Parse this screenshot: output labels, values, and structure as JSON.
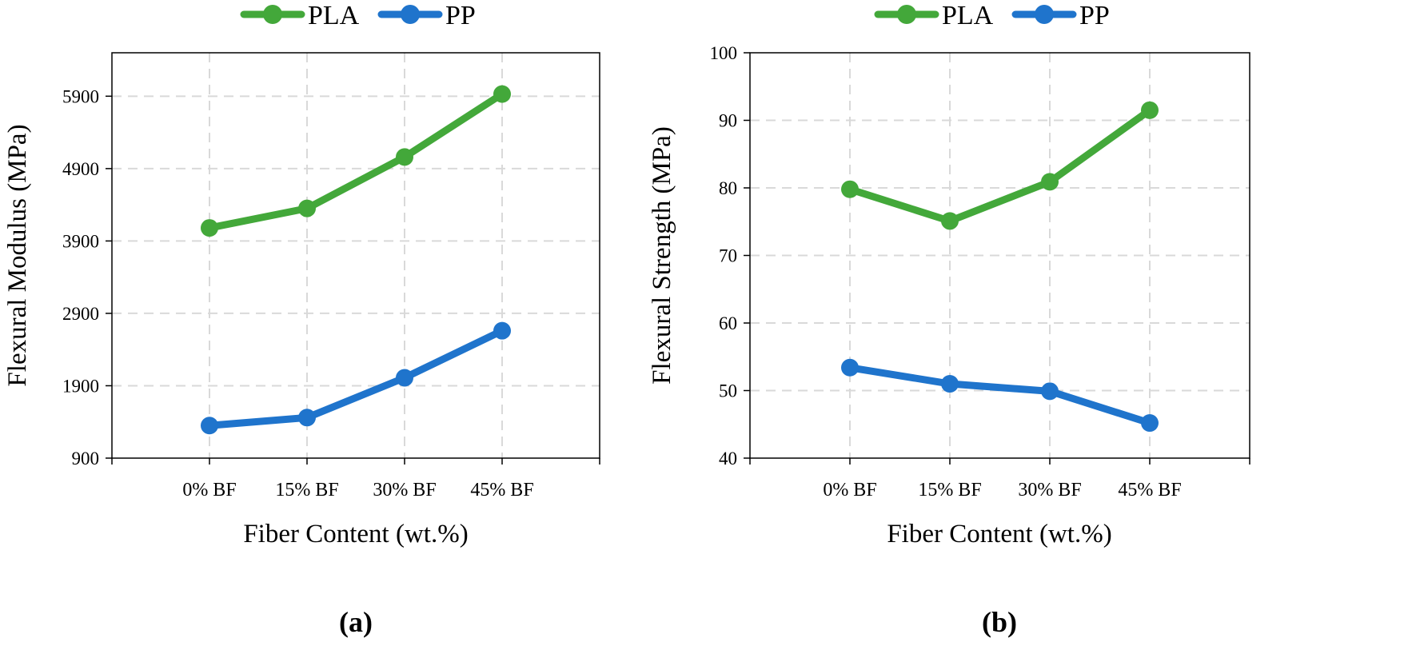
{
  "colors": {
    "pla": "#43a83a",
    "pp": "#1f74cc",
    "grid": "#d9d9d9",
    "axis": "#000000"
  },
  "chart_data": [
    {
      "type": "line",
      "panel_label": "(a)",
      "xlabel": "Fiber Content (wt.%)",
      "ylabel": "Flexural Modulus (MPa)",
      "categories": [
        "0% BF",
        "15% BF",
        "30% BF",
        "45% BF"
      ],
      "ylim": [
        900,
        6500
      ],
      "yticks": [
        900,
        1900,
        2900,
        3900,
        4900,
        5900
      ],
      "grid": true,
      "legend_position": "top-center",
      "series": [
        {
          "name": "PLA",
          "values": [
            4080,
            4350,
            5060,
            5930
          ]
        },
        {
          "name": "PP",
          "values": [
            1350,
            1460,
            2010,
            2660
          ]
        }
      ]
    },
    {
      "type": "line",
      "panel_label": "(b)",
      "xlabel": "Fiber Content (wt.%)",
      "ylabel": "Flexural Strength (MPa)",
      "categories": [
        "0% BF",
        "15% BF",
        "30% BF",
        "45% BF"
      ],
      "ylim": [
        40,
        100
      ],
      "yticks": [
        40,
        50,
        60,
        70,
        80,
        90,
        100
      ],
      "grid": true,
      "legend_position": "top-center",
      "series": [
        {
          "name": "PLA",
          "values": [
            79.8,
            75.1,
            80.9,
            91.5
          ]
        },
        {
          "name": "PP",
          "values": [
            53.4,
            51.0,
            49.9,
            45.2
          ]
        }
      ]
    }
  ]
}
